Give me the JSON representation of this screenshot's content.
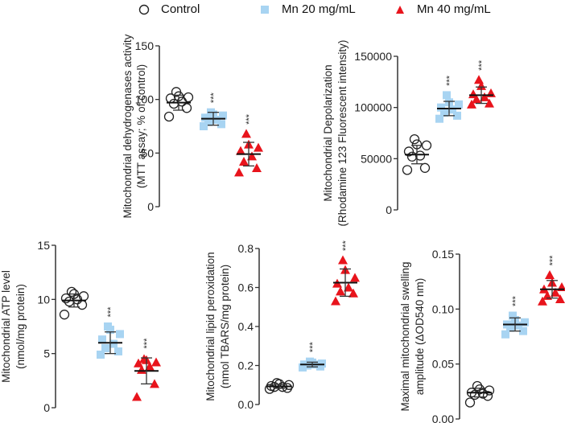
{
  "legend": [
    {
      "label": "Control",
      "marker": "open-circle",
      "color": "#222222"
    },
    {
      "label": "Mn 20 mg/mL",
      "marker": "square",
      "color": "#a8d4f2"
    },
    {
      "label": "Mn 40 mg/mL",
      "marker": "triangle",
      "color": "#e8141c"
    }
  ],
  "chart_data": [
    {
      "type": "scatter",
      "title": "",
      "ylabel": [
        "Mitochondrial dehydrogenases activity",
        "(MTT assay; % of control)"
      ],
      "ylim": [
        0,
        150
      ],
      "yticks": [
        0,
        50,
        100,
        150
      ],
      "ytick_labels": [
        "0",
        "50",
        "100",
        "150"
      ],
      "series": [
        {
          "name": "Control",
          "values": [
            84,
            92,
            96,
            98,
            101,
            102,
            103,
            107
          ],
          "mean": 97,
          "sd": 7,
          "sig": ""
        },
        {
          "name": "Mn 20 mg/mL",
          "values": [
            75,
            77,
            79,
            81,
            83,
            85,
            86,
            88
          ],
          "mean": 82,
          "sd": 6,
          "sig": "***"
        },
        {
          "name": "Mn 40 mg/mL",
          "values": [
            32,
            36,
            42,
            47,
            52,
            55,
            58,
            68
          ],
          "mean": 49,
          "sd": 11,
          "sig": "***"
        }
      ]
    },
    {
      "type": "scatter",
      "title": "",
      "ylabel": [
        "Mitochondrial Depolarization",
        "(Rhodamine 123 Fluorescent intensity)"
      ],
      "ylim": [
        0,
        150000
      ],
      "yticks": [
        0,
        50000,
        100000,
        150000
      ],
      "ytick_labels": [
        "0",
        "50000",
        "100000",
        "150000"
      ],
      "series": [
        {
          "name": "Control",
          "values": [
            39000,
            41000,
            52000,
            53000,
            57000,
            63000,
            64000,
            69000
          ],
          "mean": 54000,
          "sd": 9000,
          "sig": ""
        },
        {
          "name": "Mn 20 mg/mL",
          "values": [
            89000,
            92000,
            95000,
            98000,
            100000,
            103000,
            105000,
            112000
          ],
          "mean": 99000,
          "sd": 7000,
          "sig": "***"
        },
        {
          "name": "Mn 40 mg/mL",
          "values": [
            103000,
            104000,
            108000,
            110000,
            113000,
            114000,
            121000,
            127000
          ],
          "mean": 112000,
          "sd": 8000,
          "sig": "***"
        }
      ]
    },
    {
      "type": "scatter",
      "title": "",
      "ylabel": [
        "Mitochondrial ATP level",
        "(nmol/mg protein)"
      ],
      "ylim": [
        0,
        15
      ],
      "yticks": [
        0,
        5,
        10,
        15
      ],
      "ytick_labels": [
        "0",
        "5",
        "10",
        "15"
      ],
      "series": [
        {
          "name": "Control",
          "values": [
            8.6,
            9.5,
            9.8,
            10.0,
            10.1,
            10.3,
            10.5,
            10.7
          ],
          "mean": 9.9,
          "sd": 0.6,
          "sig": ""
        },
        {
          "name": "Mn 20 mg/mL",
          "values": [
            4.9,
            5.2,
            5.5,
            5.9,
            6.3,
            6.8,
            7.2,
            7.5
          ],
          "mean": 6.0,
          "sd": 1.0,
          "sig": "***"
        },
        {
          "name": "Mn 40 mg/mL",
          "values": [
            1.0,
            2.2,
            3.5,
            3.8,
            4.1,
            4.2,
            4.4,
            4.5
          ],
          "mean": 3.4,
          "sd": 1.2,
          "sig": "***"
        }
      ]
    },
    {
      "type": "scatter",
      "title": "",
      "ylabel": [
        "Mitochondrial lipid peroxidation",
        "(nmol TBARS/mg protein)"
      ],
      "ylim": [
        0,
        0.8
      ],
      "yticks": [
        0,
        0.2,
        0.4,
        0.6,
        0.8
      ],
      "ytick_labels": [
        "0.0",
        "0.2",
        "0.4",
        "0.6",
        "0.8"
      ],
      "series": [
        {
          "name": "Control",
          "values": [
            0.08,
            0.085,
            0.09,
            0.09,
            0.095,
            0.1,
            0.105,
            0.11
          ],
          "mean": 0.093,
          "sd": 0.01,
          "sig": ""
        },
        {
          "name": "Mn 20 mg/mL",
          "values": [
            0.19,
            0.195,
            0.2,
            0.205,
            0.205,
            0.21,
            0.215,
            0.22
          ],
          "mean": 0.205,
          "sd": 0.012,
          "sig": "***"
        },
        {
          "name": "Mn 40 mg/mL",
          "values": [
            0.53,
            0.57,
            0.58,
            0.6,
            0.62,
            0.65,
            0.69,
            0.74
          ],
          "mean": 0.625,
          "sd": 0.07,
          "sig": "***"
        }
      ]
    },
    {
      "type": "scatter",
      "title": "",
      "ylabel": [
        "Maximal mitochondrial swelling",
        "amplitude (ΔOD540 nm)"
      ],
      "ylim": [
        0,
        0.15
      ],
      "yticks": [
        0,
        0.05,
        0.1,
        0.15
      ],
      "ytick_labels": [
        "0.00",
        "0.05",
        "0.10",
        "0.15"
      ],
      "series": [
        {
          "name": "Control",
          "values": [
            0.015,
            0.021,
            0.022,
            0.023,
            0.024,
            0.026,
            0.027,
            0.03
          ],
          "mean": 0.024,
          "sd": 0.004,
          "sig": ""
        },
        {
          "name": "Mn 20 mg/mL",
          "values": [
            0.077,
            0.08,
            0.083,
            0.085,
            0.086,
            0.088,
            0.09,
            0.094
          ],
          "mean": 0.086,
          "sd": 0.006,
          "sig": "***"
        },
        {
          "name": "Mn 40 mg/mL",
          "values": [
            0.107,
            0.109,
            0.112,
            0.115,
            0.118,
            0.12,
            0.124,
            0.131
          ],
          "mean": 0.118,
          "sd": 0.008,
          "sig": "***"
        }
      ]
    }
  ]
}
